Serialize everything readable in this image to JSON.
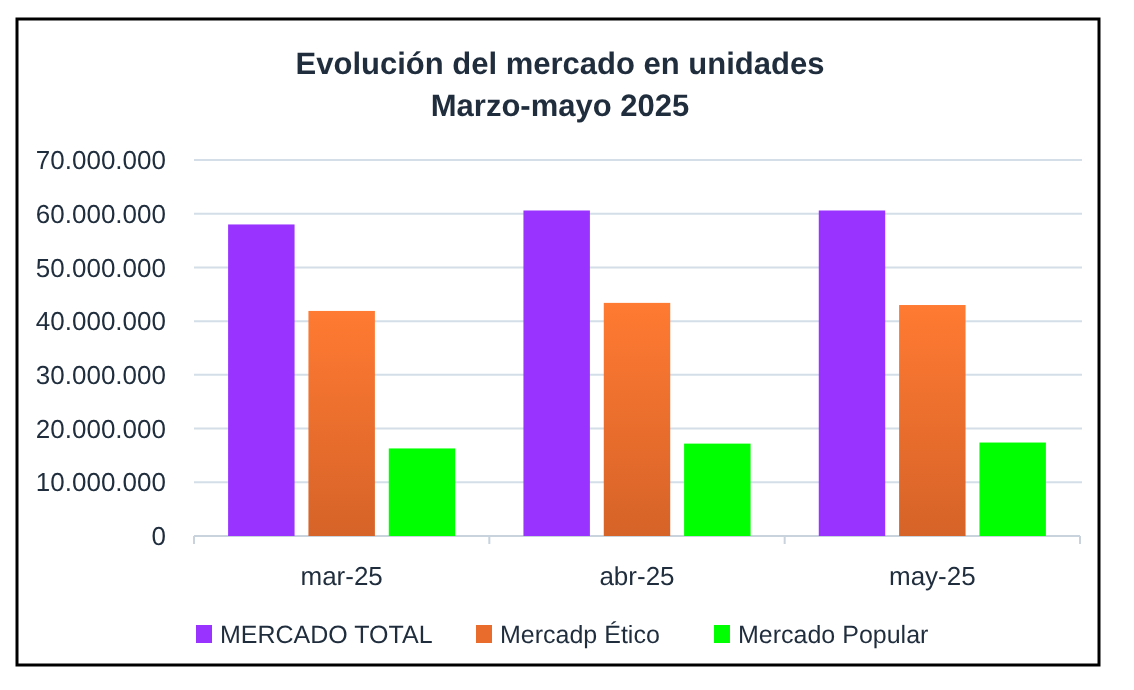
{
  "chart_data": {
    "type": "bar",
    "title": "Evolución del mercado en unidades",
    "subtitle": "Marzo-mayo 2025",
    "categories": [
      "mar-25",
      "abr-25",
      "may-25"
    ],
    "series": [
      {
        "name": "MERCADO TOTAL",
        "color": "#9933ff",
        "values": [
          58000000,
          60600000,
          60600000
        ]
      },
      {
        "name": "Mercadp Ético",
        "color": "#ea6c2c",
        "values": [
          41900000,
          43400000,
          43000000
        ]
      },
      {
        "name": "Mercado Popular",
        "color": "#00ff00",
        "values": [
          16300000,
          17200000,
          17400000
        ]
      }
    ],
    "ylim": [
      0,
      70000000
    ],
    "yticks": [
      {
        "value": 0,
        "label": "0"
      },
      {
        "value": 10000000,
        "label": "10.000.000"
      },
      {
        "value": 20000000,
        "label": "20.000.000"
      },
      {
        "value": 30000000,
        "label": "30.000.000"
      },
      {
        "value": 40000000,
        "label": "40.000.000"
      },
      {
        "value": 50000000,
        "label": "50.000.000"
      },
      {
        "value": 60000000,
        "label": "60.000.000"
      },
      {
        "value": 70000000,
        "label": "70.000.000"
      }
    ],
    "grid": "y",
    "legend": "bottom"
  }
}
